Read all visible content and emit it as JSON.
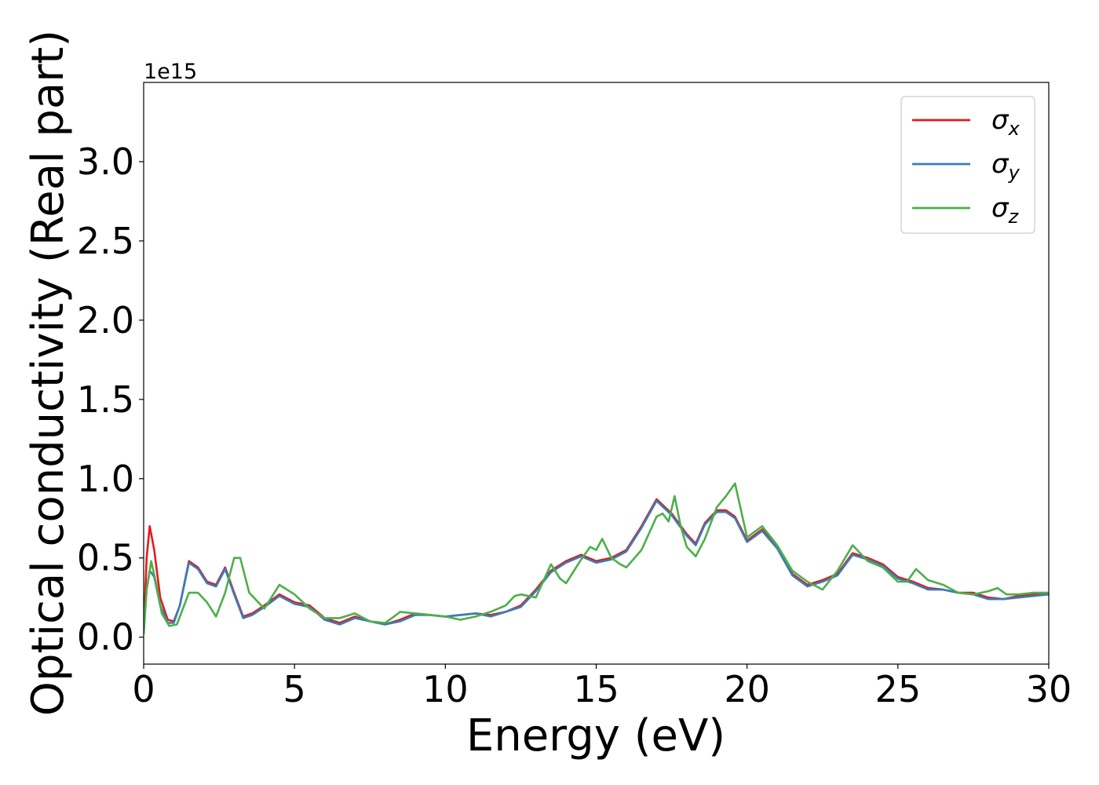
{
  "chart_data": {
    "type": "line",
    "title": "",
    "xlabel": "Energy (eV)",
    "ylabel": "Optical conductivity (Real part)",
    "y_offset_text": "1e15",
    "xlim": [
      0,
      30
    ],
    "ylim": [
      -0.17,
      3.5
    ],
    "xticks": [
      0,
      5,
      10,
      15,
      20,
      25,
      30
    ],
    "xtick_labels": [
      "0",
      "5",
      "10",
      "15",
      "20",
      "25",
      "30"
    ],
    "yticks": [
      0.0,
      0.5,
      1.0,
      1.5,
      2.0,
      2.5,
      3.0
    ],
    "ytick_labels": [
      "0.0",
      "0.5",
      "1.0",
      "1.5",
      "2.0",
      "2.5",
      "3.0"
    ],
    "grid": false,
    "legend_position": "top-right",
    "series": [
      {
        "name": "σx",
        "legend_symbol": "σ",
        "legend_subscript": "x",
        "color": "#e41a1c",
        "x": [
          0,
          0.1,
          0.2,
          0.35,
          0.55,
          0.8,
          1.0,
          1.2,
          1.5,
          1.8,
          2.1,
          2.4,
          2.7,
          3.0,
          3.3,
          3.6,
          4.0,
          4.5,
          5.0,
          5.5,
          6.0,
          6.5,
          7.0,
          7.5,
          8.0,
          8.5,
          9.0,
          9.5,
          10.0,
          10.5,
          11.0,
          11.5,
          12.0,
          12.5,
          13.0,
          13.5,
          14.0,
          14.5,
          15.0,
          15.5,
          16.0,
          16.5,
          17.0,
          17.5,
          18.0,
          18.3,
          18.6,
          19.0,
          19.3,
          19.6,
          20.0,
          20.5,
          21.0,
          21.5,
          22.0,
          22.5,
          23.0,
          23.5,
          24.0,
          24.5,
          25.0,
          25.5,
          26.0,
          26.5,
          27.0,
          27.5,
          28.0,
          28.5,
          29.0,
          29.5,
          30.0
        ],
        "y": [
          0.02,
          0.5,
          0.7,
          0.55,
          0.25,
          0.11,
          0.1,
          0.2,
          0.48,
          0.44,
          0.35,
          0.33,
          0.44,
          0.28,
          0.13,
          0.15,
          0.2,
          0.27,
          0.22,
          0.2,
          0.12,
          0.09,
          0.13,
          0.1,
          0.08,
          0.11,
          0.15,
          0.14,
          0.13,
          0.14,
          0.15,
          0.14,
          0.16,
          0.2,
          0.3,
          0.42,
          0.48,
          0.52,
          0.48,
          0.5,
          0.55,
          0.7,
          0.87,
          0.78,
          0.65,
          0.59,
          0.72,
          0.8,
          0.8,
          0.76,
          0.61,
          0.68,
          0.57,
          0.4,
          0.33,
          0.36,
          0.4,
          0.53,
          0.5,
          0.46,
          0.38,
          0.35,
          0.31,
          0.3,
          0.28,
          0.28,
          0.25,
          0.24,
          0.26,
          0.27,
          0.28
        ]
      },
      {
        "name": "σy",
        "legend_symbol": "σ",
        "legend_subscript": "y",
        "color": "#377eb8",
        "x": [
          0,
          0.1,
          0.2,
          0.35,
          0.55,
          0.8,
          1.0,
          1.2,
          1.5,
          1.8,
          2.1,
          2.4,
          2.7,
          3.0,
          3.3,
          3.6,
          4.0,
          4.5,
          5.0,
          5.5,
          6.0,
          6.5,
          7.0,
          7.5,
          8.0,
          8.5,
          9.0,
          9.5,
          10.0,
          10.5,
          11.0,
          11.5,
          12.0,
          12.5,
          13.0,
          13.5,
          14.0,
          14.5,
          15.0,
          15.5,
          16.0,
          16.5,
          17.0,
          17.5,
          18.0,
          18.3,
          18.6,
          19.0,
          19.3,
          19.6,
          20.0,
          20.5,
          21.0,
          21.5,
          22.0,
          22.5,
          23.0,
          23.5,
          24.0,
          24.5,
          25.0,
          25.5,
          26.0,
          26.5,
          27.0,
          27.5,
          28.0,
          28.5,
          29.0,
          29.5,
          30.0
        ],
        "y": [
          0.02,
          0.3,
          0.42,
          0.38,
          0.2,
          0.09,
          0.09,
          0.2,
          0.47,
          0.43,
          0.34,
          0.32,
          0.43,
          0.27,
          0.12,
          0.14,
          0.19,
          0.26,
          0.21,
          0.19,
          0.11,
          0.08,
          0.12,
          0.1,
          0.08,
          0.1,
          0.14,
          0.14,
          0.13,
          0.14,
          0.15,
          0.13,
          0.16,
          0.19,
          0.29,
          0.41,
          0.47,
          0.51,
          0.47,
          0.49,
          0.54,
          0.69,
          0.86,
          0.77,
          0.64,
          0.58,
          0.71,
          0.79,
          0.79,
          0.75,
          0.6,
          0.67,
          0.56,
          0.39,
          0.32,
          0.35,
          0.39,
          0.52,
          0.49,
          0.45,
          0.37,
          0.34,
          0.3,
          0.3,
          0.28,
          0.27,
          0.24,
          0.24,
          0.25,
          0.26,
          0.27
        ]
      },
      {
        "name": "σz",
        "legend_symbol": "σ",
        "legend_subscript": "z",
        "color": "#4daf4a",
        "x": [
          0,
          0.1,
          0.25,
          0.4,
          0.6,
          0.85,
          1.1,
          1.5,
          1.8,
          2.1,
          2.4,
          2.7,
          3.0,
          3.2,
          3.5,
          4.0,
          4.5,
          5.0,
          5.5,
          6.0,
          6.5,
          7.0,
          7.5,
          8.0,
          8.3,
          8.5,
          9.0,
          9.5,
          10.0,
          10.5,
          11.0,
          11.5,
          12.0,
          12.3,
          12.5,
          13.0,
          13.5,
          13.8,
          14.0,
          14.5,
          14.8,
          15.0,
          15.2,
          15.5,
          15.8,
          16.0,
          16.5,
          17.0,
          17.2,
          17.4,
          17.6,
          17.8,
          18.0,
          18.3,
          18.6,
          19.0,
          19.3,
          19.6,
          20.0,
          20.5,
          21.0,
          21.5,
          22.0,
          22.5,
          23.0,
          23.5,
          24.0,
          24.5,
          25.0,
          25.3,
          25.6,
          26.0,
          26.5,
          27.0,
          27.5,
          28.0,
          28.3,
          28.6,
          29.0,
          29.5,
          30.0
        ],
        "y": [
          0.02,
          0.3,
          0.48,
          0.35,
          0.15,
          0.07,
          0.08,
          0.28,
          0.28,
          0.22,
          0.13,
          0.28,
          0.5,
          0.5,
          0.28,
          0.18,
          0.33,
          0.27,
          0.18,
          0.12,
          0.12,
          0.15,
          0.1,
          0.09,
          0.13,
          0.16,
          0.15,
          0.14,
          0.13,
          0.11,
          0.13,
          0.16,
          0.2,
          0.26,
          0.27,
          0.25,
          0.46,
          0.37,
          0.34,
          0.49,
          0.57,
          0.55,
          0.62,
          0.5,
          0.46,
          0.44,
          0.55,
          0.76,
          0.78,
          0.73,
          0.89,
          0.7,
          0.57,
          0.51,
          0.62,
          0.82,
          0.89,
          0.97,
          0.63,
          0.7,
          0.58,
          0.42,
          0.35,
          0.3,
          0.42,
          0.58,
          0.48,
          0.44,
          0.35,
          0.35,
          0.43,
          0.36,
          0.33,
          0.28,
          0.27,
          0.29,
          0.31,
          0.27,
          0.27,
          0.28,
          0.28
        ]
      }
    ]
  }
}
